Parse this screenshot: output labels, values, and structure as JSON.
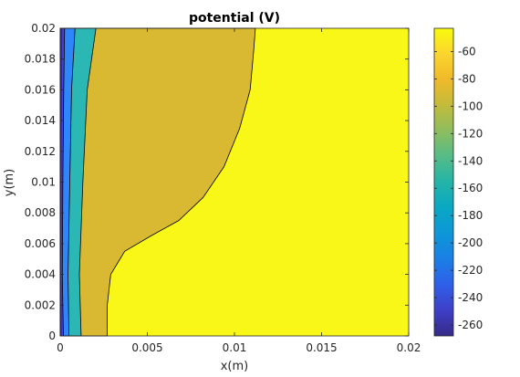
{
  "chart_data": {
    "type": "contour",
    "title": "potential (V)",
    "xlabel": "x(m)",
    "ylabel": "y(m)",
    "xlim": [
      0,
      0.02
    ],
    "ylim": [
      0,
      0.02
    ],
    "x_ticks": [
      "0",
      "0.005",
      "0.01",
      "0.015",
      "0.02"
    ],
    "x_tick_values": [
      0,
      0.005,
      0.01,
      0.015,
      0.02
    ],
    "y_ticks": [
      "0",
      "0.002",
      "0.004",
      "0.006",
      "0.008",
      "0.01",
      "0.012",
      "0.014",
      "0.016",
      "0.018",
      "0.02"
    ],
    "y_tick_values": [
      0,
      0.002,
      0.004,
      0.006,
      0.008,
      0.01,
      0.012,
      0.014,
      0.016,
      0.018,
      0.02
    ],
    "colorbar": {
      "range": [
        -268,
        -43
      ],
      "tick_labels": [
        "-60",
        "-80",
        "-100",
        "-120",
        "-140",
        "-160",
        "-180",
        "-200",
        "-220",
        "-240",
        "-260"
      ],
      "tick_values": [
        -60,
        -80,
        -100,
        -120,
        -140,
        -160,
        -180,
        -200,
        -220,
        -240,
        -260
      ],
      "colormap": "parula"
    },
    "contour_regions": [
      {
        "level": -268,
        "color": "#3e26a8",
        "boundary": [
          [
            0.00018,
            0
          ],
          [
            0.00012,
            0.004
          ],
          [
            0.00015,
            0.01
          ],
          [
            0.0002,
            0.016
          ],
          [
            0.00025,
            0.02
          ]
        ]
      },
      {
        "level": -240,
        "color": "#4443e3",
        "boundary": [
          [
            0.0005,
            0
          ],
          [
            0.00045,
            0.004
          ],
          [
            0.00055,
            0.01
          ],
          [
            0.00065,
            0.016
          ],
          [
            0.00085,
            0.02
          ]
        ]
      },
      {
        "level": -190,
        "color": "#2f86fb",
        "boundary": [
          [
            0.0012,
            0
          ],
          [
            0.0011,
            0.004
          ],
          [
            0.0013,
            0.01
          ],
          [
            0.00155,
            0.016
          ],
          [
            0.00205,
            0.02
          ]
        ]
      },
      {
        "level": -150,
        "color": "#2bb7b4",
        "boundary": [
          [
            0.0027,
            0
          ],
          [
            0.0027,
            0.002
          ],
          [
            0.0029,
            0.004
          ],
          [
            0.0037,
            0.0055
          ],
          [
            0.0052,
            0.0065
          ],
          [
            0.0068,
            0.0075
          ],
          [
            0.0082,
            0.009
          ],
          [
            0.0094,
            0.011
          ],
          [
            0.0103,
            0.0135
          ],
          [
            0.0109,
            0.016
          ],
          [
            0.0111,
            0.0185
          ],
          [
            0.0112,
            0.02
          ]
        ]
      },
      {
        "level": -95,
        "color": "#d9b931",
        "boundary": []
      },
      {
        "level": -50,
        "color": "#f8f718",
        "boundary": []
      }
    ]
  }
}
